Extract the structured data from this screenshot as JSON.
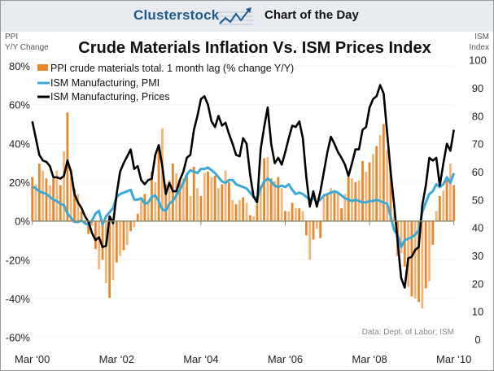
{
  "header": {
    "brand": "Clusterstock",
    "subtitle": "Chart of the Day",
    "logo_icon": "rising-chart-arrow-icon"
  },
  "colors": {
    "header_bg": "#e8ecf0",
    "brand": "#1f5a8a",
    "bars": "#e8862a",
    "bars_light": "#f5b478",
    "pmi": "#3aa9d6",
    "prices": "#000000",
    "axis": "#8a8a6a"
  },
  "chart_data": {
    "type": "bar+line",
    "title": "Crude Materials Inflation Vs. ISM Prices Index",
    "ylabel_left": [
      "PPI",
      "Y/Y Change"
    ],
    "ylabel_right": [
      "ISM",
      "Index"
    ],
    "source": "Data: Dept. of Labor; ISM",
    "x_start": "2000-03",
    "x_frequency": "monthly",
    "x_ticks": [
      "Mar ‘00",
      "Mar ‘02",
      "Mar ‘04",
      "Mar ‘06",
      "Mar ‘08",
      "Mar ‘10"
    ],
    "y_left_ticks": [
      "80%",
      "60%",
      "40%",
      "20%",
      "0%",
      "-20%",
      "-40%",
      "-60%"
    ],
    "y_left_range": [
      -60,
      80
    ],
    "y_right_ticks": [
      "100",
      "90",
      "80",
      "70",
      "60",
      "50",
      "40",
      "30",
      "20",
      "10",
      "0"
    ],
    "y_right_range": [
      0,
      100
    ],
    "grid": true,
    "legend_position": "top-left",
    "series": [
      {
        "name": "PPI crude materials total. 1 month lag (% change Y/Y)",
        "type": "bar",
        "axis": "left",
        "values": [
          22.7,
          19,
          29.6,
          26,
          22,
          18.5,
          22,
          26,
          18.5,
          36,
          56,
          27,
          16.5,
          14,
          5,
          -2,
          -6.7,
          -2.5,
          -14.5,
          -25,
          -20,
          -32,
          -39.6,
          -30.5,
          -21.4,
          -18,
          -15,
          -12.3,
          -5.3,
          -3.2,
          3.8,
          10.8,
          14,
          10,
          25.5,
          20,
          37.3,
          47.8,
          19,
          21,
          29.6,
          24.7,
          21,
          22,
          23.4,
          12.9,
          28,
          17,
          12.9,
          24.7,
          25.5,
          22.7,
          23.4,
          17,
          19,
          26,
          20,
          10.8,
          8.7,
          10.8,
          12.2,
          9.4,
          3,
          2.4,
          8.7,
          18.5,
          32.4,
          33,
          22,
          20.6,
          22.7,
          17,
          5.2,
          5,
          9.4,
          6.6,
          6.6,
          5.2,
          -7.4,
          -20,
          -9.5,
          -4,
          -8.8,
          12.9,
          14,
          17,
          15.7,
          14,
          6.6,
          14,
          22.7,
          22,
          20,
          21,
          31,
          25.5,
          30.3,
          34.5,
          38.7,
          44.3,
          50,
          36.6,
          26,
          4.5,
          -18,
          -16.5,
          -23.5,
          -34,
          -38.9,
          -40,
          -41.7,
          -45,
          -34.7,
          -31,
          -12.3,
          5.2,
          12.9,
          15.7,
          21,
          29.6,
          18.5
        ]
      },
      {
        "name": "ISM Manufacturing, PMI",
        "type": "line",
        "axis": "right",
        "values": [
          54.7,
          54,
          53,
          52.5,
          52,
          51,
          50,
          49.5,
          48.5,
          48,
          45,
          43.5,
          42,
          42,
          42.5,
          41.5,
          41,
          42.5,
          45,
          46,
          41,
          44,
          45.5,
          47,
          51,
          52,
          52.5,
          53,
          53.5,
          50,
          50,
          50.5,
          48.5,
          49,
          51,
          51.5,
          49.5,
          46.5,
          46,
          48.5,
          49.5,
          51.5,
          53.5,
          56,
          59,
          60.5,
          60,
          59.5,
          61,
          61,
          61.5,
          60.5,
          59.5,
          58,
          56.5,
          56,
          57,
          57,
          55.5,
          55,
          54.5,
          54,
          52.5,
          51,
          50.5,
          54,
          56.5,
          57.5,
          56.5,
          55,
          54.5,
          55,
          54.5,
          55.5,
          53.5,
          52,
          52.5,
          52,
          51,
          50,
          50.5,
          49,
          50,
          51.5,
          52,
          52.5,
          53,
          52.5,
          51.5,
          50.5,
          50,
          49.5,
          50,
          49.5,
          49,
          49,
          49.5,
          49.5,
          50,
          49.5,
          49,
          48.5,
          44,
          39,
          37.5,
          33,
          35.5,
          36,
          36.5,
          37.5,
          39,
          45.5,
          49,
          52,
          53,
          55.5,
          54.5,
          55.5,
          58,
          56,
          59.5
        ]
      },
      {
        "name": "ISM Manufacturing, Prices",
        "type": "line",
        "axis": "right",
        "values": [
          78,
          72,
          66,
          64,
          63.5,
          62,
          58,
          58,
          57.5,
          58.5,
          64,
          60,
          52,
          49,
          47,
          44,
          42,
          38,
          35.5,
          36.5,
          33,
          33.5,
          44,
          41.5,
          52,
          60,
          63,
          65.5,
          68,
          61,
          62,
          57,
          55.5,
          57,
          57.5,
          66,
          69.5,
          62,
          52,
          56,
          53,
          53,
          57,
          60,
          65,
          66,
          75,
          80,
          86,
          87,
          84,
          78,
          76,
          80,
          76.5,
          77.5,
          73.5,
          70,
          66,
          65.5,
          72,
          70,
          59,
          51,
          49,
          68,
          76,
          83,
          70,
          63,
          65,
          62.5,
          67,
          72,
          76.5,
          76,
          78,
          72,
          58,
          47.5,
          53,
          47.5,
          53,
          60,
          67,
          72.5,
          70,
          67,
          65,
          62.5,
          58.5,
          63,
          68,
          68,
          75,
          76,
          83,
          86,
          87,
          91,
          88,
          74,
          60,
          48,
          35,
          22,
          18.5,
          29,
          29.5,
          32,
          33,
          48,
          55,
          65,
          64,
          65,
          55,
          63,
          70,
          67.5,
          75
        ]
      }
    ]
  }
}
